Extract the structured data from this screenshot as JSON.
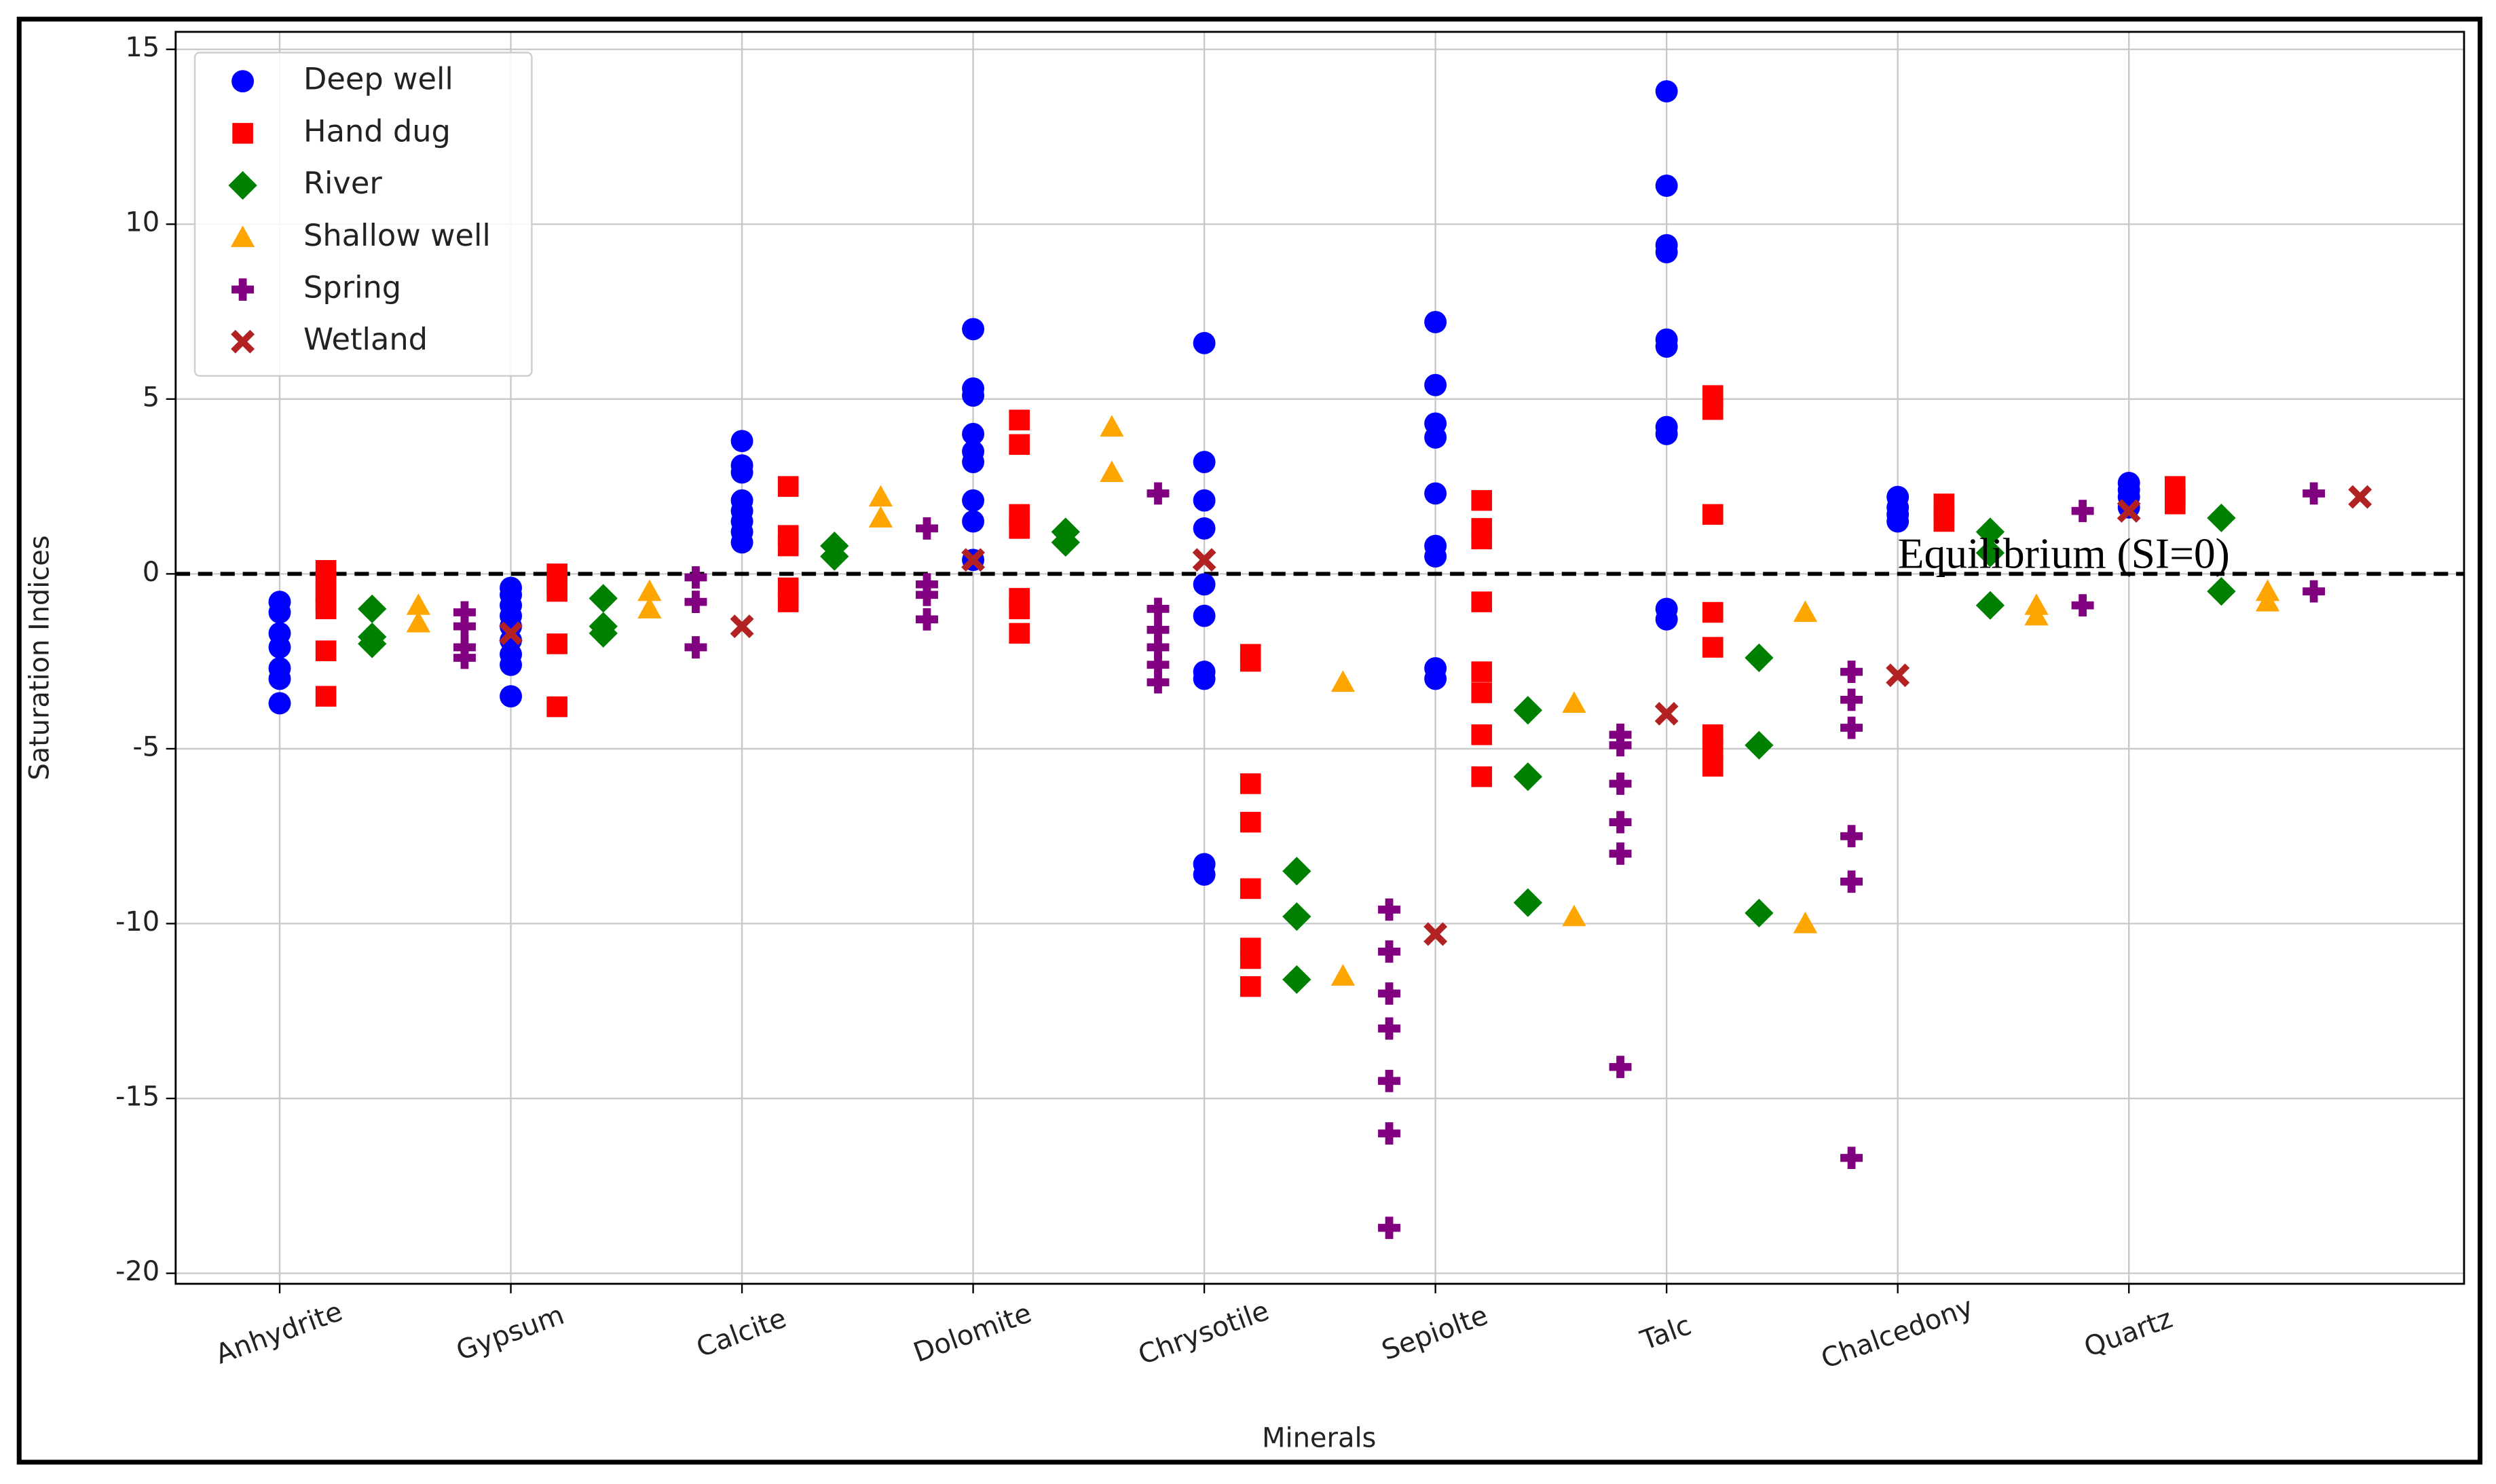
{
  "chart_data": {
    "type": "scatter",
    "xlabel": "Minerals",
    "ylabel": "Saturation Indices",
    "xlim": [
      -0.45,
      9.45
    ],
    "ylim": [
      -20.3,
      15.5
    ],
    "xticks": [
      {
        "value": 0,
        "label": "Anhydrite"
      },
      {
        "value": 1,
        "label": "Gypsum"
      },
      {
        "value": 2,
        "label": "Calcite"
      },
      {
        "value": 3,
        "label": "Dolomite"
      },
      {
        "value": 4,
        "label": "Chrysotile"
      },
      {
        "value": 5,
        "label": "Sepiolte"
      },
      {
        "value": 6,
        "label": "Talc"
      },
      {
        "value": 7,
        "label": "Chalcedony"
      },
      {
        "value": 8,
        "label": "Quartz"
      }
    ],
    "yticks": [
      -20,
      -15,
      -10,
      -5,
      0,
      5,
      10,
      15
    ],
    "grid": true,
    "legend": "upper left",
    "hline": 0,
    "annotations": [
      {
        "text": "Equilibrium (SI=0)",
        "x": 7.0,
        "y": 0.45
      }
    ],
    "series": [
      {
        "name": "Deep well",
        "color": "#0000ff",
        "marker": "circle",
        "x": [
          0,
          0,
          0,
          0,
          0,
          0,
          0,
          1,
          1,
          1,
          1,
          1,
          1,
          1,
          1,
          1,
          2,
          2,
          2,
          2,
          2,
          2,
          2,
          2,
          3,
          3,
          3,
          3,
          3,
          3,
          3,
          3,
          3,
          4,
          4,
          4,
          4,
          4,
          4,
          4,
          4,
          4,
          4,
          5,
          5,
          5,
          5,
          5,
          5,
          5,
          5,
          5,
          6,
          6,
          6,
          6,
          6,
          6,
          6,
          6,
          6,
          6,
          7,
          7,
          7,
          7,
          8,
          8,
          8,
          8
        ],
        "values": [
          -0.8,
          -1.1,
          -1.7,
          -2.1,
          -2.7,
          -3.0,
          -3.7,
          -0.4,
          -0.6,
          -0.9,
          -1.2,
          -1.5,
          -1.9,
          -2.3,
          -2.6,
          -3.5,
          3.8,
          3.1,
          2.9,
          2.1,
          1.8,
          1.5,
          1.2,
          0.9,
          7.0,
          5.3,
          5.1,
          4.0,
          3.5,
          3.2,
          2.1,
          1.5,
          0.4,
          6.6,
          3.2,
          2.1,
          1.3,
          -0.3,
          -1.2,
          -2.8,
          -3.0,
          -8.3,
          -8.6,
          7.2,
          5.4,
          4.3,
          3.9,
          2.3,
          0.8,
          0.5,
          -2.7,
          -3.0,
          13.8,
          11.1,
          9.4,
          9.2,
          6.7,
          6.5,
          4.2,
          4.0,
          -1.0,
          -1.3,
          2.2,
          1.9,
          1.7,
          1.5,
          2.6,
          2.4,
          2.2,
          1.9
        ]
      },
      {
        "name": "Hand dug",
        "color": "#ff0000",
        "marker": "square",
        "x": [
          0.2,
          0.2,
          0.2,
          0.2,
          0.2,
          0.2,
          0.2,
          1.2,
          1.2,
          1.2,
          1.2,
          1.2,
          2.2,
          2.2,
          2.2,
          2.2,
          2.2,
          3.2,
          3.2,
          3.2,
          3.2,
          3.2,
          3.2,
          3.2,
          4.2,
          4.2,
          4.2,
          4.2,
          4.2,
          4.2,
          4.2,
          4.2,
          5.2,
          5.2,
          5.2,
          5.2,
          5.2,
          5.2,
          5.2,
          5.2,
          6.2,
          6.2,
          6.2,
          6.2,
          6.2,
          6.2,
          6.2,
          6.2,
          7.2,
          7.2,
          7.2,
          8.2,
          8.2,
          8.2
        ],
        "values": [
          0.1,
          -0.2,
          -0.5,
          -0.8,
          -1.0,
          -2.2,
          -3.5,
          0.0,
          -0.3,
          -0.5,
          -2.0,
          -3.8,
          2.5,
          1.1,
          0.8,
          -0.4,
          -0.8,
          4.4,
          3.7,
          1.7,
          1.3,
          -0.7,
          -1.0,
          -1.7,
          -2.3,
          -2.5,
          -6.0,
          -7.1,
          -9.0,
          -10.7,
          -11.0,
          -11.8,
          2.1,
          1.3,
          1.0,
          -0.8,
          -2.8,
          -3.4,
          -4.6,
          -5.8,
          5.1,
          4.7,
          1.7,
          -1.1,
          -2.1,
          -4.6,
          -5.0,
          -5.5,
          2.0,
          1.7,
          1.5,
          2.5,
          2.2,
          2.0
        ]
      },
      {
        "name": "River",
        "color": "#008000",
        "marker": "diamond",
        "x": [
          0.4,
          0.4,
          0.4,
          1.4,
          1.4,
          1.4,
          2.4,
          2.4,
          3.4,
          3.4,
          4.4,
          4.4,
          4.4,
          5.4,
          5.4,
          5.4,
          6.4,
          6.4,
          6.4,
          7.4,
          7.4,
          7.4,
          8.4,
          8.4
        ],
        "values": [
          -1.0,
          -1.8,
          -2.0,
          -0.7,
          -1.5,
          -1.7,
          0.8,
          0.5,
          1.2,
          0.9,
          -8.5,
          -9.8,
          -11.6,
          -3.9,
          -5.8,
          -9.4,
          -2.4,
          -4.9,
          -9.7,
          1.2,
          0.6,
          -0.9,
          1.6,
          -0.5
        ]
      },
      {
        "name": "Shallow well",
        "color": "#ffa500",
        "marker": "triangle",
        "x": [
          0.6,
          0.6,
          1.6,
          1.6,
          2.6,
          2.6,
          3.6,
          3.6,
          4.6,
          4.6,
          5.6,
          5.6,
          6.6,
          6.6,
          7.6,
          7.6,
          8.6,
          8.6
        ],
        "values": [
          -0.9,
          -1.4,
          -0.5,
          -1.0,
          2.2,
          1.6,
          4.2,
          2.9,
          -3.1,
          -11.5,
          -3.7,
          -9.8,
          -1.1,
          -10.0,
          -0.9,
          -1.2,
          -0.5,
          -0.8
        ]
      },
      {
        "name": "Spring",
        "color": "#800080",
        "marker": "plus",
        "x": [
          0.8,
          0.8,
          0.8,
          0.8,
          1.8,
          1.8,
          1.8,
          2.8,
          2.8,
          2.8,
          2.8,
          3.8,
          3.8,
          3.8,
          3.8,
          3.8,
          3.8,
          4.8,
          4.8,
          4.8,
          4.8,
          4.8,
          4.8,
          4.8,
          5.8,
          5.8,
          5.8,
          5.8,
          5.8,
          5.8,
          6.8,
          6.8,
          6.8,
          6.8,
          6.8,
          6.8,
          7.8,
          7.8,
          8.8,
          8.8
        ],
        "values": [
          -1.1,
          -1.5,
          -2.1,
          -2.4,
          -0.1,
          -0.8,
          -2.1,
          1.3,
          -0.3,
          -0.6,
          -1.3,
          2.3,
          -1.0,
          -1.6,
          -2.1,
          -2.6,
          -3.1,
          -9.6,
          -10.8,
          -12.0,
          -13.0,
          -14.5,
          -16.0,
          -18.7,
          -4.6,
          -4.9,
          -6.0,
          -7.1,
          -8.0,
          -14.1,
          -2.8,
          -3.6,
          -4.4,
          -7.5,
          -8.8,
          -16.7,
          1.8,
          -0.9,
          2.3,
          -0.5
        ]
      },
      {
        "name": "Wetland",
        "color": "#b22222",
        "marker": "x",
        "x": [
          1,
          2,
          3,
          4,
          5,
          6,
          7,
          8,
          9
        ],
        "values": [
          -1.7,
          -1.5,
          0.4,
          0.4,
          -10.3,
          -4.0,
          -2.9,
          1.8,
          2.2
        ]
      }
    ]
  }
}
